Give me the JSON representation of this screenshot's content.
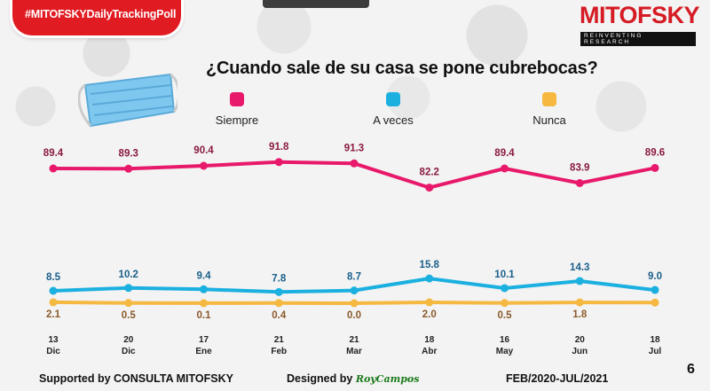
{
  "header": {
    "hashtag": "#MITOFSKYDailyTrackingPoll",
    "brand": "MITOFSKY",
    "brand_tagline": "REINVENTING RESEARCH"
  },
  "question": "¿Cuando sale de su casa se pone cubrebocas?",
  "colors": {
    "siempre": "#e8196b",
    "a_veces": "#1bb0e0",
    "nunca": "#f5b841",
    "nunca_label": "#8b5a2b",
    "a_veces_label": "#1a5f8a",
    "siempre_label": "#8a1a3f"
  },
  "chart_data": {
    "type": "line",
    "categories": [
      "13 Dic",
      "20 Dic",
      "17 Ene",
      "21 Feb",
      "21 Mar",
      "18 Abr",
      "16 May",
      "20 Jun",
      "18 Jul"
    ],
    "category_day": [
      "13",
      "20",
      "17",
      "21",
      "21",
      "18",
      "16",
      "20",
      "18"
    ],
    "category_month": [
      "Dic",
      "Dic",
      "Ene",
      "Feb",
      "Mar",
      "Abr",
      "May",
      "Jun",
      "Jul"
    ],
    "series": [
      {
        "name": "Siempre",
        "values": [
          89.4,
          89.3,
          90.4,
          91.8,
          91.3,
          82.2,
          89.4,
          83.9,
          89.6
        ],
        "labels": [
          "89.4",
          "89.3",
          "90.4",
          "91.8",
          "91.3",
          "82.2",
          "89.4",
          "83.9",
          "89.6"
        ]
      },
      {
        "name": "A veces",
        "values": [
          8.5,
          10.2,
          9.4,
          7.8,
          8.7,
          15.8,
          10.1,
          14.3,
          9.0
        ],
        "labels": [
          "8.5",
          "10.2",
          "9.4",
          "7.8",
          "8.7",
          "15.8",
          "10.1",
          "14.3",
          "9.0"
        ]
      },
      {
        "name": "Nunca",
        "values": [
          2.1,
          0.5,
          0.1,
          0.4,
          0.0,
          2.0,
          0.5,
          1.8,
          1.4
        ],
        "labels": [
          "2.1",
          "0.5",
          "0.1",
          "0.4",
          "0.0",
          "2.0",
          "0.5",
          "1.8",
          ""
        ]
      }
    ],
    "legend_position": "top",
    "grid": false
  },
  "footer": {
    "supported": "Supported by  CONSULTA  MITOFSKY",
    "designed": "Designed by",
    "designer": "RoyCampos",
    "period": "FEB/2020-JUL/2021",
    "page": "6"
  }
}
